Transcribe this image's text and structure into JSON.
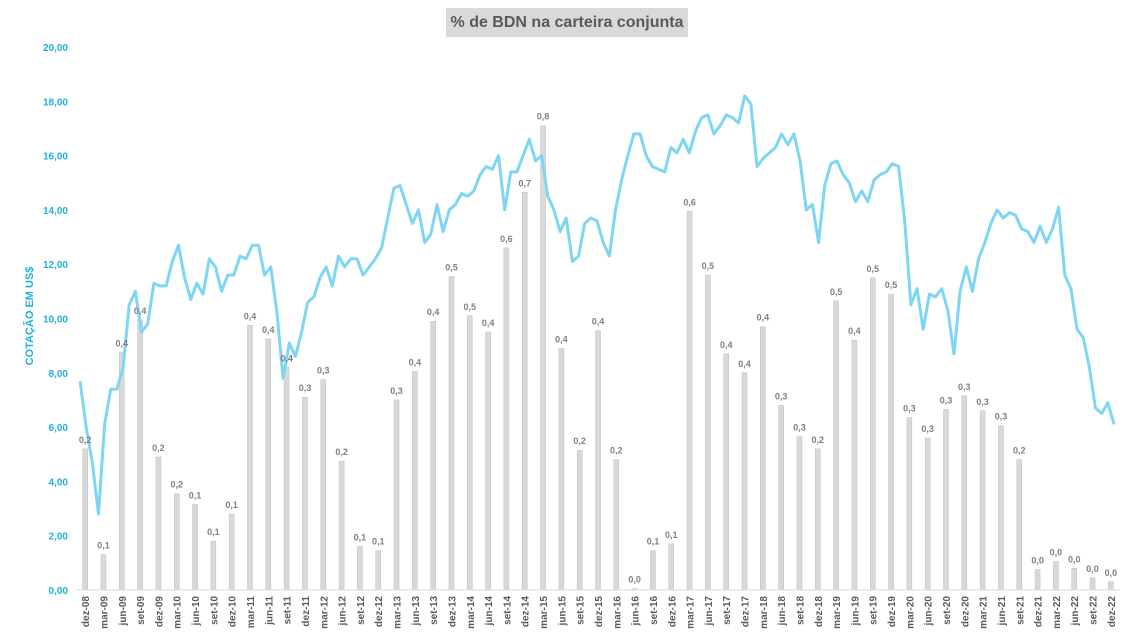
{
  "chart_data": {
    "type": "bar",
    "title": "% de BDN na carteira conjunta",
    "ylabel": "COTAÇÃO EM US$",
    "ylim": [
      0,
      20
    ],
    "y_ticks": [
      "0,00",
      "2,00",
      "4,00",
      "6,00",
      "8,00",
      "10,00",
      "12,00",
      "14,00",
      "16,00",
      "18,00",
      "20,00"
    ],
    "x_tick_labels": [
      "dez-08",
      "mar-09",
      "jun-09",
      "set-09",
      "dez-09",
      "mar-10",
      "jun-10",
      "set-10",
      "dez-10",
      "mar-11",
      "jun-11",
      "set-11",
      "dez-11",
      "mar-12",
      "jun-12",
      "set-12",
      "dez-12",
      "mar-13",
      "jun-13",
      "set-13",
      "dez-13",
      "mar-14",
      "jun-14",
      "set-14",
      "dez-14",
      "mar-15",
      "jun-15",
      "set-15",
      "dez-15",
      "mar-16",
      "jun-16",
      "set-16",
      "dez-16",
      "mar-17",
      "jun-17",
      "set-17",
      "dez-17",
      "mar-18",
      "jun-18",
      "set-18",
      "dez-18",
      "mar-19",
      "jun-19",
      "set-19",
      "dez-19",
      "mar-20",
      "jun-20",
      "set-20",
      "dez-20",
      "mar-21",
      "jun-21",
      "set-21",
      "dez-21",
      "mar-22",
      "jun-22",
      "set-22",
      "dez-22"
    ],
    "grid": false,
    "legend": "none",
    "colors": {
      "bar": "#d9d9d9",
      "bar_border": "#bfbfbf",
      "line": "#7fd6f2",
      "axis": "#1fb1dc",
      "label": "#7f7f7f"
    },
    "series": [
      {
        "type": "bar",
        "values": [
          5.2,
          1.3,
          8.75,
          9.95,
          4.9,
          3.55,
          3.15,
          1.8,
          2.8,
          9.75,
          9.25,
          8.2,
          7.1,
          7.75,
          4.75,
          1.6,
          1.45,
          7.0,
          8.05,
          9.9,
          11.55,
          10.1,
          9.5,
          12.6,
          14.65,
          17.1,
          8.9,
          5.15,
          9.55,
          4.8,
          0.05,
          1.45,
          1.7,
          13.95,
          11.6,
          8.7,
          8.0,
          9.7,
          6.8,
          5.65,
          5.2,
          10.65,
          9.2,
          11.5,
          10.9,
          6.35,
          5.6,
          6.65,
          7.15,
          6.6,
          6.05,
          4.8,
          0.75,
          1.05,
          0.8,
          0.45,
          0.3
        ],
        "data_labels": [
          "0,2",
          "0,1",
          "0,4",
          "0,4",
          "0,2",
          "0,2",
          "0,1",
          "0,1",
          "0,1",
          "0,4",
          "0,4",
          "0,4",
          "0,3",
          "0,3",
          "0,2",
          "0,1",
          "0,1",
          "0,3",
          "0,4",
          "0,4",
          "0,5",
          "0,5",
          "0,4",
          "0,6",
          "0,7",
          "0,8",
          "0,4",
          "0,2",
          "0,4",
          "0,2",
          "0,0",
          "0,1",
          "0,1",
          "0,6",
          "0,5",
          "0,4",
          "0,4",
          "0,4",
          "0,3",
          "0,3",
          "0,2",
          "0,5",
          "0,4",
          "0,5",
          "0,5",
          "0,3",
          "0,3",
          "0,3",
          "0,3",
          "0,3",
          "0,3",
          "0,2",
          "0,0",
          "0,0",
          "0,0",
          "0,0",
          "0,0"
        ]
      },
      {
        "type": "line",
        "values": [
          7.7,
          6.0,
          4.7,
          2.8,
          6.1,
          7.4,
          7.4,
          8.2,
          10.5,
          11.0,
          9.5,
          9.8,
          11.3,
          11.2,
          11.2,
          12.1,
          12.7,
          11.5,
          10.7,
          11.3,
          10.9,
          12.2,
          11.9,
          11.0,
          11.6,
          11.6,
          12.3,
          12.2,
          12.7,
          12.7,
          11.6,
          11.9,
          10.2,
          7.8,
          9.1,
          8.6,
          9.5,
          10.6,
          10.8,
          11.5,
          11.9,
          11.2,
          12.3,
          11.9,
          12.2,
          12.2,
          11.6,
          11.9,
          12.2,
          12.6,
          13.7,
          14.8,
          14.9,
          14.2,
          13.5,
          14.0,
          12.8,
          13.1,
          14.2,
          13.2,
          14.0,
          14.2,
          14.6,
          14.5,
          14.7,
          15.3,
          15.6,
          15.5,
          16.0,
          14.0,
          15.4,
          15.4,
          16.0,
          16.6,
          15.8,
          16.0,
          14.5,
          14.0,
          13.2,
          13.7,
          12.1,
          12.3,
          13.5,
          13.7,
          13.6,
          12.8,
          12.3,
          14.0,
          15.1,
          16.0,
          16.8,
          16.8,
          16.0,
          15.6,
          15.5,
          15.4,
          16.3,
          16.1,
          16.6,
          16.1,
          16.9,
          17.4,
          17.5,
          16.8,
          17.1,
          17.5,
          17.4,
          17.2,
          18.2,
          17.9,
          15.6,
          15.9,
          16.1,
          16.3,
          16.8,
          16.4,
          16.8,
          15.8,
          14.0,
          14.2,
          12.8,
          14.9,
          15.7,
          15.8,
          15.3,
          15.0,
          14.3,
          14.7,
          14.3,
          15.1,
          15.3,
          15.4,
          15.7,
          15.6,
          13.6,
          10.5,
          11.1,
          9.6,
          10.9,
          10.8,
          11.1,
          10.3,
          8.7,
          11.0,
          11.9,
          11.0,
          12.2,
          12.8,
          13.5,
          14.0,
          13.7,
          13.9,
          13.8,
          13.3,
          13.2,
          12.8,
          13.4,
          12.8,
          13.3,
          14.1,
          11.6,
          11.1,
          9.6,
          9.3,
          8.2,
          6.7,
          6.5,
          6.9,
          6.1
        ]
      }
    ]
  }
}
